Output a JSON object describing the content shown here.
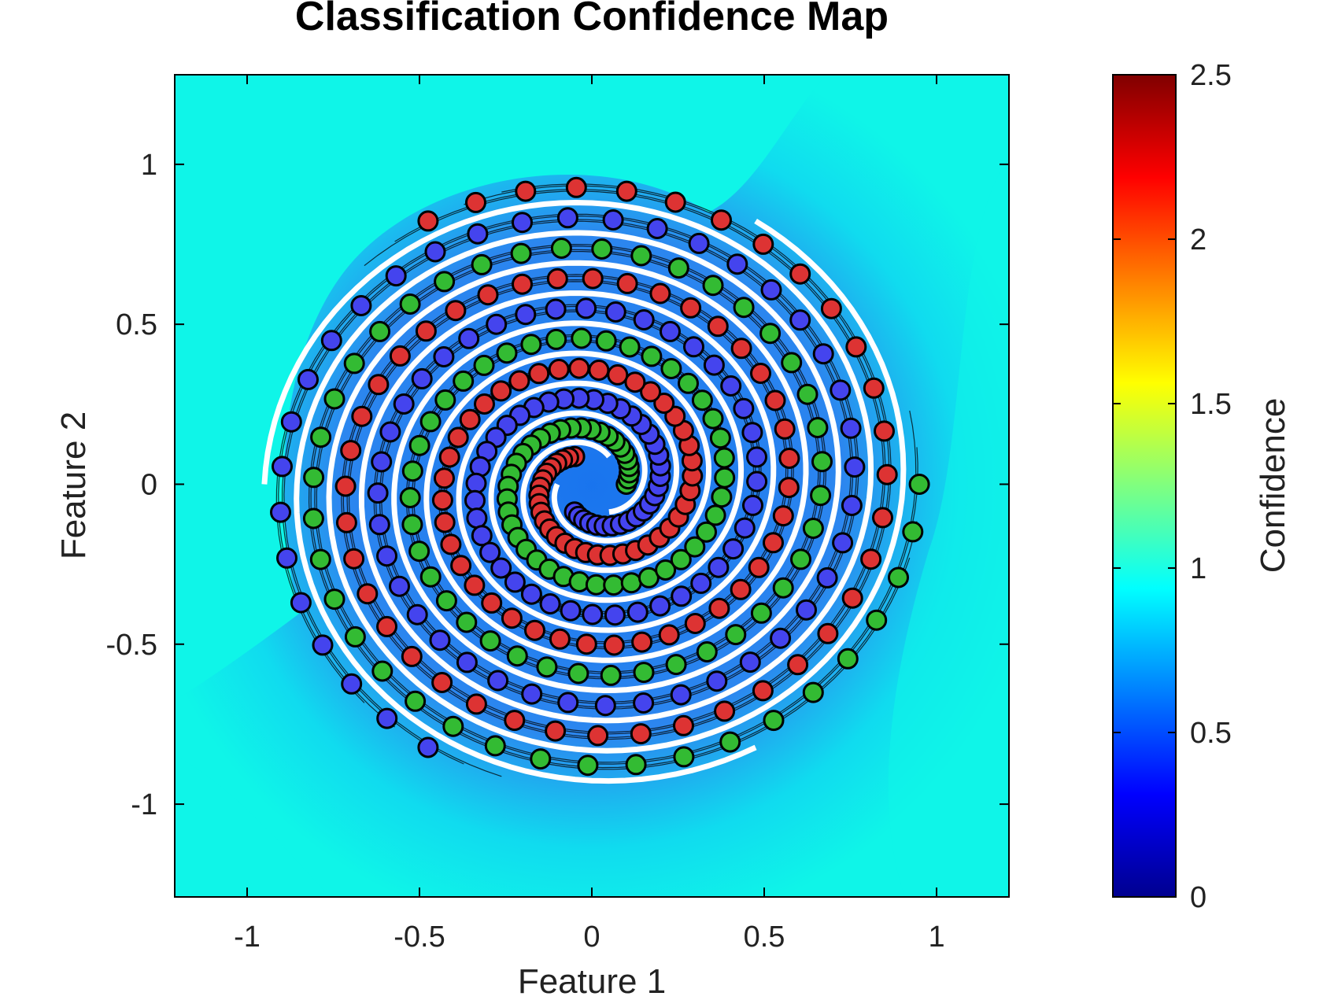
{
  "chart_data": {
    "type": "scatter",
    "title": "Classification Confidence Map",
    "xlabel": "Feature 1",
    "ylabel": "Feature 2",
    "xlim": [
      -1.21,
      1.21
    ],
    "ylim": [
      -1.29,
      1.28
    ],
    "xticks": [
      -1,
      -0.5,
      0,
      0.5,
      1
    ],
    "xtick_labels": [
      "-1",
      "-0.5",
      "0",
      "0.5",
      "1"
    ],
    "yticks": [
      -1,
      -0.5,
      0,
      0.5,
      1
    ],
    "ytick_labels": [
      "-1",
      "-0.5",
      "0",
      "0.5",
      "1"
    ],
    "background": "filled contour map of classifier confidence (mostly cyan ~0.8 outside, blue ~0.4 between spiral arms) with black contour lines and white decision boundaries",
    "colorbar": {
      "label": "Confidence",
      "range": [
        0,
        2.5
      ],
      "ticks": [
        0,
        0.5,
        1,
        1.5,
        2,
        2.5
      ],
      "tick_labels": [
        "0",
        "0.5",
        "1",
        "1.5",
        "2",
        "2.5"
      ],
      "colormap": "jet"
    },
    "series": [
      {
        "color": "#33bb33",
        "arm_offset_deg": 0
      },
      {
        "color": "#dd3333",
        "arm_offset_deg": 120
      },
      {
        "color": "#4444ee",
        "arm_offset_deg": 240
      }
    ],
    "spiral": {
      "r_start": 0.1,
      "r_end": 0.95,
      "turns": 3,
      "points_per_arm": 120
    },
    "grid": false,
    "legend": "none"
  }
}
